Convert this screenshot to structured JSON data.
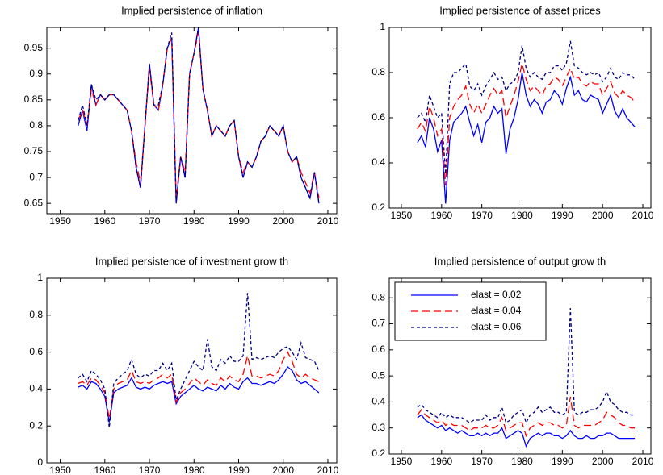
{
  "chart_data": [
    {
      "type": "line",
      "title": "Implied persistence of inflation",
      "x": [
        1954,
        1955,
        1956,
        1957,
        1958,
        1959,
        1960,
        1961,
        1962,
        1963,
        1964,
        1965,
        1966,
        1967,
        1968,
        1969,
        1970,
        1971,
        1972,
        1973,
        1974,
        1975,
        1976,
        1977,
        1978,
        1979,
        1980,
        1981,
        1982,
        1983,
        1984,
        1985,
        1986,
        1987,
        1988,
        1989,
        1990,
        1991,
        1992,
        1993,
        1994,
        1995,
        1996,
        1997,
        1998,
        1999,
        2000,
        2001,
        2002,
        2003,
        2004,
        2005,
        2006,
        2007,
        2008
      ],
      "xlim": [
        1947,
        2012
      ],
      "xticks": [
        1950,
        1960,
        1970,
        1980,
        1990,
        2000,
        2010
      ],
      "ylim": [
        0.63,
        0.99
      ],
      "yticks": [
        0.65,
        0.7,
        0.75,
        0.8,
        0.85,
        0.9,
        0.95
      ],
      "series": [
        {
          "color": "#0000ff",
          "dash": "solid",
          "values": [
            0.8,
            0.83,
            0.79,
            0.88,
            0.84,
            0.86,
            0.85,
            0.86,
            0.86,
            0.85,
            0.84,
            0.83,
            0.79,
            0.72,
            0.68,
            0.8,
            0.92,
            0.84,
            0.83,
            0.88,
            0.95,
            0.97,
            0.65,
            0.74,
            0.7,
            0.9,
            0.94,
            0.99,
            0.87,
            0.83,
            0.78,
            0.8,
            0.79,
            0.78,
            0.8,
            0.81,
            0.74,
            0.7,
            0.73,
            0.72,
            0.74,
            0.77,
            0.78,
            0.8,
            0.79,
            0.78,
            0.8,
            0.75,
            0.73,
            0.74,
            0.7,
            0.68,
            0.66,
            0.71,
            0.65
          ]
        },
        {
          "color": "#ff0000",
          "dash": "long",
          "values": [
            0.81,
            0.83,
            0.8,
            0.87,
            0.84,
            0.86,
            0.85,
            0.86,
            0.86,
            0.85,
            0.84,
            0.83,
            0.79,
            0.73,
            0.69,
            0.8,
            0.91,
            0.84,
            0.83,
            0.88,
            0.95,
            0.97,
            0.66,
            0.74,
            0.71,
            0.9,
            0.94,
            0.98,
            0.87,
            0.83,
            0.78,
            0.8,
            0.79,
            0.78,
            0.8,
            0.81,
            0.74,
            0.71,
            0.73,
            0.72,
            0.74,
            0.77,
            0.78,
            0.8,
            0.79,
            0.78,
            0.8,
            0.75,
            0.73,
            0.74,
            0.71,
            0.69,
            0.67,
            0.71,
            0.66
          ]
        },
        {
          "color": "#000080",
          "dash": "short",
          "values": [
            0.81,
            0.84,
            0.8,
            0.88,
            0.85,
            0.86,
            0.85,
            0.86,
            0.86,
            0.85,
            0.84,
            0.83,
            0.79,
            0.72,
            0.68,
            0.8,
            0.92,
            0.84,
            0.84,
            0.88,
            0.95,
            0.98,
            0.65,
            0.74,
            0.7,
            0.9,
            0.94,
            0.99,
            0.87,
            0.83,
            0.78,
            0.8,
            0.79,
            0.78,
            0.8,
            0.81,
            0.74,
            0.7,
            0.73,
            0.72,
            0.74,
            0.77,
            0.78,
            0.8,
            0.79,
            0.78,
            0.8,
            0.75,
            0.73,
            0.74,
            0.7,
            0.68,
            0.66,
            0.71,
            0.65
          ]
        }
      ]
    },
    {
      "type": "line",
      "title": "Implied persistence of asset prices",
      "x": [
        1954,
        1955,
        1956,
        1957,
        1958,
        1959,
        1960,
        1961,
        1962,
        1963,
        1964,
        1965,
        1966,
        1967,
        1968,
        1969,
        1970,
        1971,
        1972,
        1973,
        1974,
        1975,
        1976,
        1977,
        1978,
        1979,
        1980,
        1981,
        1982,
        1983,
        1984,
        1985,
        1986,
        1987,
        1988,
        1989,
        1990,
        1991,
        1992,
        1993,
        1994,
        1995,
        1996,
        1997,
        1998,
        1999,
        2000,
        2001,
        2002,
        2003,
        2004,
        2005,
        2006,
        2007,
        2008
      ],
      "xlim": [
        1947,
        2012
      ],
      "xticks": [
        1950,
        1960,
        1970,
        1980,
        1990,
        2000,
        2010
      ],
      "ylim": [
        0.2,
        1
      ],
      "yticks": [
        0.2,
        0.4,
        0.6,
        0.8,
        1
      ],
      "series": [
        {
          "color": "#0000ff",
          "dash": "solid",
          "values": [
            0.49,
            0.52,
            0.47,
            0.6,
            0.55,
            0.45,
            0.5,
            0.22,
            0.5,
            0.58,
            0.6,
            0.62,
            0.65,
            0.58,
            0.52,
            0.57,
            0.49,
            0.58,
            0.6,
            0.65,
            0.62,
            0.64,
            0.44,
            0.55,
            0.6,
            0.68,
            0.8,
            0.7,
            0.65,
            0.68,
            0.66,
            0.62,
            0.67,
            0.68,
            0.72,
            0.7,
            0.66,
            0.73,
            0.78,
            0.7,
            0.72,
            0.68,
            0.67,
            0.7,
            0.69,
            0.68,
            0.62,
            0.66,
            0.7,
            0.63,
            0.6,
            0.64,
            0.6,
            0.58,
            0.56
          ]
        },
        {
          "color": "#ff0000",
          "dash": "long",
          "values": [
            0.55,
            0.58,
            0.54,
            0.65,
            0.6,
            0.52,
            0.55,
            0.3,
            0.6,
            0.65,
            0.68,
            0.7,
            0.74,
            0.66,
            0.62,
            0.66,
            0.62,
            0.66,
            0.7,
            0.73,
            0.7,
            0.72,
            0.6,
            0.65,
            0.7,
            0.76,
            0.84,
            0.77,
            0.72,
            0.74,
            0.72,
            0.7,
            0.74,
            0.75,
            0.78,
            0.77,
            0.74,
            0.78,
            0.82,
            0.77,
            0.78,
            0.75,
            0.74,
            0.76,
            0.75,
            0.75,
            0.7,
            0.73,
            0.76,
            0.71,
            0.69,
            0.72,
            0.7,
            0.69,
            0.67
          ]
        },
        {
          "color": "#000080",
          "dash": "short",
          "values": [
            0.6,
            0.62,
            0.58,
            0.7,
            0.65,
            0.6,
            0.62,
            0.35,
            0.75,
            0.8,
            0.8,
            0.82,
            0.84,
            0.74,
            0.72,
            0.75,
            0.7,
            0.74,
            0.77,
            0.8,
            0.77,
            0.78,
            0.72,
            0.75,
            0.76,
            0.8,
            0.92,
            0.82,
            0.78,
            0.8,
            0.78,
            0.77,
            0.8,
            0.8,
            0.83,
            0.83,
            0.81,
            0.84,
            0.94,
            0.83,
            0.82,
            0.8,
            0.79,
            0.8,
            0.79,
            0.8,
            0.76,
            0.78,
            0.82,
            0.78,
            0.77,
            0.8,
            0.79,
            0.79,
            0.77
          ]
        }
      ]
    },
    {
      "type": "line",
      "title": "Implied persistence of investment grow th",
      "x": [
        1954,
        1955,
        1956,
        1957,
        1958,
        1959,
        1960,
        1961,
        1962,
        1963,
        1964,
        1965,
        1966,
        1967,
        1968,
        1969,
        1970,
        1971,
        1972,
        1973,
        1974,
        1975,
        1976,
        1977,
        1978,
        1979,
        1980,
        1981,
        1982,
        1983,
        1984,
        1985,
        1986,
        1987,
        1988,
        1989,
        1990,
        1991,
        1992,
        1993,
        1994,
        1995,
        1996,
        1997,
        1998,
        1999,
        2000,
        2001,
        2002,
        2003,
        2004,
        2005,
        2006,
        2007,
        2008
      ],
      "xlim": [
        1947,
        2012
      ],
      "xticks": [
        1950,
        1960,
        1970,
        1980,
        1990,
        2000,
        2010
      ],
      "ylim": [
        0,
        1
      ],
      "yticks": [
        0,
        0.2,
        0.4,
        0.6,
        0.8,
        1
      ],
      "series": [
        {
          "color": "#0000ff",
          "dash": "solid",
          "values": [
            0.41,
            0.42,
            0.4,
            0.44,
            0.43,
            0.4,
            0.36,
            0.22,
            0.38,
            0.4,
            0.41,
            0.42,
            0.46,
            0.41,
            0.4,
            0.41,
            0.4,
            0.42,
            0.43,
            0.44,
            0.43,
            0.44,
            0.32,
            0.36,
            0.38,
            0.4,
            0.42,
            0.4,
            0.39,
            0.41,
            0.4,
            0.39,
            0.42,
            0.4,
            0.43,
            0.41,
            0.4,
            0.44,
            0.46,
            0.43,
            0.43,
            0.42,
            0.43,
            0.44,
            0.43,
            0.45,
            0.48,
            0.52,
            0.5,
            0.45,
            0.43,
            0.44,
            0.42,
            0.4,
            0.38
          ]
        },
        {
          "color": "#ff0000",
          "dash": "long",
          "values": [
            0.43,
            0.44,
            0.42,
            0.46,
            0.45,
            0.42,
            0.38,
            0.24,
            0.4,
            0.43,
            0.44,
            0.45,
            0.5,
            0.44,
            0.43,
            0.44,
            0.43,
            0.45,
            0.46,
            0.48,
            0.46,
            0.48,
            0.33,
            0.38,
            0.4,
            0.43,
            0.46,
            0.44,
            0.42,
            0.45,
            0.43,
            0.42,
            0.46,
            0.44,
            0.47,
            0.45,
            0.44,
            0.48,
            0.58,
            0.47,
            0.47,
            0.46,
            0.47,
            0.48,
            0.47,
            0.5,
            0.56,
            0.6,
            0.55,
            0.48,
            0.46,
            0.48,
            0.46,
            0.45,
            0.44
          ]
        },
        {
          "color": "#000080",
          "dash": "short",
          "values": [
            0.46,
            0.48,
            0.44,
            0.5,
            0.48,
            0.45,
            0.4,
            0.19,
            0.43,
            0.46,
            0.48,
            0.5,
            0.56,
            0.48,
            0.46,
            0.48,
            0.47,
            0.5,
            0.5,
            0.54,
            0.5,
            0.54,
            0.34,
            0.4,
            0.45,
            0.5,
            0.55,
            0.52,
            0.5,
            0.67,
            0.52,
            0.5,
            0.56,
            0.54,
            0.58,
            0.55,
            0.55,
            0.58,
            0.92,
            0.56,
            0.57,
            0.56,
            0.57,
            0.58,
            0.57,
            0.6,
            0.62,
            0.63,
            0.6,
            0.56,
            0.65,
            0.57,
            0.56,
            0.55,
            0.5
          ]
        }
      ]
    },
    {
      "type": "line",
      "title": "Implied persistence of output grow th",
      "legend": "upper left",
      "x": [
        1954,
        1955,
        1956,
        1957,
        1958,
        1959,
        1960,
        1961,
        1962,
        1963,
        1964,
        1965,
        1966,
        1967,
        1968,
        1969,
        1970,
        1971,
        1972,
        1973,
        1974,
        1975,
        1976,
        1977,
        1978,
        1979,
        1980,
        1981,
        1982,
        1983,
        1984,
        1985,
        1986,
        1987,
        1988,
        1989,
        1990,
        1991,
        1992,
        1993,
        1994,
        1995,
        1996,
        1997,
        1998,
        1999,
        2000,
        2001,
        2002,
        2003,
        2004,
        2005,
        2006,
        2007,
        2008
      ],
      "xlim": [
        1947,
        2012
      ],
      "xticks": [
        1950,
        1960,
        1970,
        1980,
        1990,
        2000,
        2010
      ],
      "ylim": [
        0.2,
        0.875
      ],
      "yticks": [
        0.2,
        0.3,
        0.4,
        0.5,
        0.6,
        0.7,
        0.8
      ],
      "series": [
        {
          "name": "elast = 0.02",
          "color": "#0000ff",
          "dash": "solid",
          "values": [
            0.34,
            0.35,
            0.33,
            0.32,
            0.31,
            0.3,
            0.31,
            0.29,
            0.3,
            0.29,
            0.28,
            0.29,
            0.28,
            0.27,
            0.27,
            0.28,
            0.27,
            0.28,
            0.27,
            0.28,
            0.28,
            0.3,
            0.26,
            0.27,
            0.28,
            0.29,
            0.28,
            0.23,
            0.26,
            0.27,
            0.28,
            0.27,
            0.28,
            0.28,
            0.27,
            0.27,
            0.26,
            0.27,
            0.29,
            0.27,
            0.26,
            0.26,
            0.27,
            0.26,
            0.26,
            0.27,
            0.27,
            0.28,
            0.28,
            0.27,
            0.26,
            0.26,
            0.26,
            0.26,
            0.26
          ]
        },
        {
          "name": "elast = 0.04",
          "color": "#ff0000",
          "dash": "long",
          "values": [
            0.35,
            0.37,
            0.35,
            0.34,
            0.33,
            0.32,
            0.33,
            0.31,
            0.32,
            0.31,
            0.31,
            0.31,
            0.3,
            0.29,
            0.3,
            0.3,
            0.3,
            0.31,
            0.3,
            0.3,
            0.31,
            0.34,
            0.29,
            0.3,
            0.31,
            0.32,
            0.32,
            0.27,
            0.3,
            0.31,
            0.32,
            0.31,
            0.32,
            0.32,
            0.31,
            0.31,
            0.3,
            0.31,
            0.42,
            0.31,
            0.3,
            0.31,
            0.31,
            0.31,
            0.31,
            0.32,
            0.33,
            0.36,
            0.35,
            0.34,
            0.32,
            0.31,
            0.31,
            0.3,
            0.3
          ]
        },
        {
          "name": "elast = 0.06",
          "color": "#000080",
          "dash": "short",
          "values": [
            0.38,
            0.39,
            0.37,
            0.36,
            0.35,
            0.34,
            0.36,
            0.34,
            0.35,
            0.34,
            0.34,
            0.34,
            0.33,
            0.32,
            0.33,
            0.33,
            0.33,
            0.35,
            0.33,
            0.34,
            0.34,
            0.38,
            0.32,
            0.33,
            0.35,
            0.36,
            0.37,
            0.32,
            0.35,
            0.36,
            0.38,
            0.36,
            0.37,
            0.38,
            0.36,
            0.36,
            0.35,
            0.36,
            0.76,
            0.36,
            0.35,
            0.36,
            0.36,
            0.37,
            0.37,
            0.38,
            0.4,
            0.44,
            0.4,
            0.39,
            0.37,
            0.36,
            0.36,
            0.35,
            0.35
          ]
        }
      ]
    }
  ]
}
